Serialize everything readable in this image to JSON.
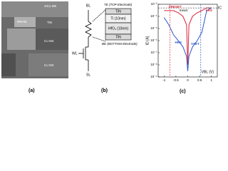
{
  "panels": {
    "a": {
      "caption": "(a)",
      "labels": [
        "4ICu M5",
        "RRAM",
        "TiN",
        "Cu M4",
        "Cu M3"
      ]
    },
    "b": {
      "caption": "(b)",
      "terminals": [
        "BL",
        "WL",
        "SL"
      ],
      "top_electrode": "TE (TOP Electrode)",
      "layers": [
        "TiN",
        "Ti (10nm)",
        "HfO₂ (10nm)",
        "TiN"
      ],
      "bottom_electrode": "BE (BOTTOM Electrode)"
    },
    "c": {
      "caption": "(c)"
    }
  },
  "chart_data": {
    "type": "line",
    "x_label": "VBL (V)",
    "y_label": "ID [A]",
    "log_y": true,
    "x": [
      -1,
      -0.8,
      -0.6,
      -0.4,
      -0.2,
      -0.05,
      0,
      0.05,
      0.2,
      0.4,
      0.6,
      0.8,
      1
    ],
    "series": [
      {
        "name": "LRS",
        "color": "#d9263a",
        "values": [
          0.0003,
          0.0003,
          0.0003,
          0.0002,
          0.0001,
          2e-05,
          1e-08,
          2e-05,
          0.0001,
          0.0002,
          0.0003,
          0.0005,
          0.0005
        ]
      },
      {
        "name": "HRS",
        "color": "#2b56c6",
        "values": [
          8e-05,
          2e-05,
          3e-06,
          1e-06,
          3e-07,
          5e-08,
          3e-09,
          5e-08,
          3e-07,
          1e-06,
          5e-06,
          0.0003,
          0.0005
        ]
      }
    ],
    "vlines": [
      {
        "label": "VRESET",
        "x": -0.75,
        "color": "#d9263a"
      },
      {
        "label": "VSET",
        "x": 0.55,
        "color": "#2b56c6"
      }
    ],
    "hline": {
      "label": "IC",
      "y": 0.0005
    },
    "annotation": "Ireset",
    "xlim": [
      -1.25,
      1.25
    ],
    "ylim": [
      1e-09,
      0.001
    ],
    "xticks": [
      -1,
      -0.5,
      0,
      0.5,
      1
    ],
    "yticks": [
      {
        "value": 0.001,
        "label": "10⁻³"
      },
      {
        "value": 0.0001,
        "label": "10⁻⁴"
      },
      {
        "value": 1e-05,
        "label": "10⁻⁵"
      },
      {
        "value": 1e-06,
        "label": "10⁻⁶"
      },
      {
        "value": 1e-07,
        "label": "10⁻⁷"
      },
      {
        "value": 1e-08,
        "label": "10⁻⁸"
      },
      {
        "value": 1e-09,
        "label": "10⁻⁹"
      }
    ]
  }
}
